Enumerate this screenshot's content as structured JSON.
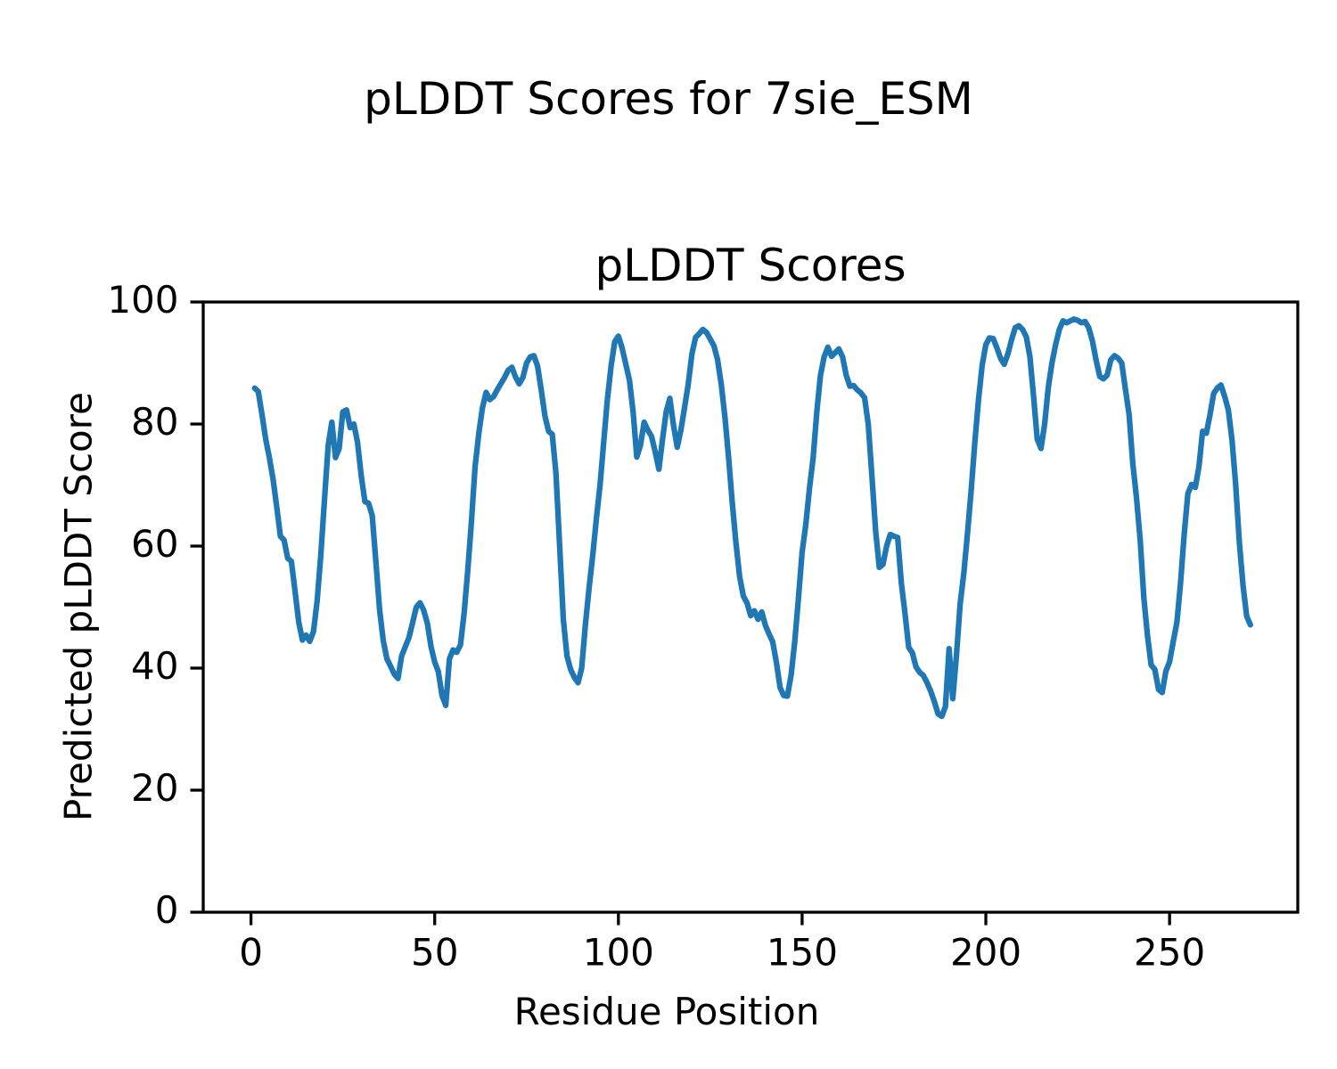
{
  "figure": {
    "title": "pLDDT Scores for 7sie_ESM"
  },
  "chart_data": {
    "type": "line",
    "title": "pLDDT Scores",
    "xlabel": "Residue Position",
    "ylabel": "Predicted pLDDT Score",
    "xlim": [
      -13,
      284.9
    ],
    "ylim": [
      0,
      100
    ],
    "xticks": [
      0,
      50,
      100,
      150,
      200,
      250
    ],
    "yticks": [
      0,
      20,
      40,
      60,
      80,
      100
    ],
    "grid": false,
    "legend_position": "none",
    "line_color": "#1f77b4",
    "x_start": 1,
    "x_step": 1,
    "values": [
      85.9,
      85.3,
      81.5,
      77.5,
      74.5,
      71.0,
      66.5,
      61.6,
      61.0,
      58.0,
      57.5,
      52.5,
      47.5,
      44.6,
      45.4,
      44.4,
      46.0,
      51.0,
      58.5,
      67.5,
      76.5,
      80.3,
      74.5,
      76.0,
      82.0,
      82.3,
      79.4,
      80.0,
      77.0,
      71.5,
      67.3,
      67.0,
      65.0,
      57.5,
      49.5,
      44.5,
      41.5,
      40.3,
      39.0,
      38.3,
      42.0,
      43.5,
      45.0,
      47.5,
      50.0,
      50.7,
      49.5,
      47.3,
      43.5,
      41.0,
      39.4,
      35.5,
      33.9,
      41.5,
      43.0,
      42.6,
      43.8,
      49.0,
      56.0,
      64.0,
      73.0,
      78.5,
      82.7,
      85.2,
      84.0,
      84.5,
      85.6,
      86.6,
      87.6,
      88.8,
      89.3,
      87.7,
      86.6,
      87.6,
      90.0,
      91.0,
      91.2,
      89.5,
      85.6,
      81.3,
      78.8,
      78.3,
      72.0,
      60.0,
      48.0,
      42.0,
      39.8,
      38.5,
      37.6,
      40.0,
      47.0,
      53.0,
      58.5,
      64.5,
      70.0,
      77.0,
      84.0,
      89.5,
      93.5,
      94.4,
      92.5,
      89.8,
      87.2,
      82.0,
      74.6,
      76.5,
      80.3,
      79.0,
      78.0,
      75.5,
      72.6,
      77.5,
      82.0,
      84.2,
      79.8,
      76.2,
      79.0,
      82.7,
      86.5,
      91.5,
      94.2,
      94.8,
      95.5,
      95.0,
      93.9,
      92.8,
      90.5,
      86.5,
      81.0,
      74.4,
      67.0,
      60.5,
      55.0,
      51.8,
      50.7,
      48.6,
      49.4,
      48.0,
      49.2,
      47.0,
      45.6,
      44.3,
      40.9,
      36.8,
      35.5,
      35.4,
      38.9,
      44.4,
      51.5,
      59.0,
      63.5,
      69.5,
      74.5,
      82.0,
      88.0,
      91.0,
      92.6,
      91.1,
      91.7,
      92.3,
      91.0,
      88.0,
      86.2,
      86.3,
      85.6,
      85.1,
      84.3,
      80.0,
      71.5,
      62.5,
      56.5,
      57.0,
      60.0,
      61.9,
      61.6,
      61.4,
      54.0,
      49.0,
      43.4,
      42.5,
      40.2,
      39.3,
      38.8,
      37.6,
      36.2,
      34.5,
      32.5,
      32.1,
      33.7,
      43.2,
      35.0,
      42.0,
      50.5,
      55.5,
      62.0,
      69.0,
      77.0,
      84.0,
      89.6,
      93.0,
      94.1,
      94.0,
      92.5,
      90.8,
      89.8,
      91.5,
      93.8,
      95.8,
      96.1,
      95.5,
      94.3,
      91.0,
      84.5,
      77.5,
      76.0,
      80.0,
      86.0,
      90.0,
      93.0,
      95.5,
      96.9,
      96.6,
      96.9,
      97.2,
      97.0,
      96.6,
      96.8,
      95.8,
      93.6,
      90.5,
      87.8,
      87.4,
      88.0,
      90.5,
      91.2,
      90.8,
      90.0,
      85.6,
      81.5,
      73.5,
      68.0,
      61.0,
      51.5,
      45.3,
      40.5,
      39.8,
      36.5,
      36.0,
      39.5,
      41.0,
      44.4,
      47.5,
      54.0,
      62.0,
      68.6,
      70.1,
      69.6,
      73.0,
      78.8,
      78.5,
      81.5,
      85.0,
      85.9,
      86.4,
      84.5,
      82.3,
      77.4,
      70.1,
      60.5,
      53.5,
      48.5,
      47.1
    ]
  }
}
